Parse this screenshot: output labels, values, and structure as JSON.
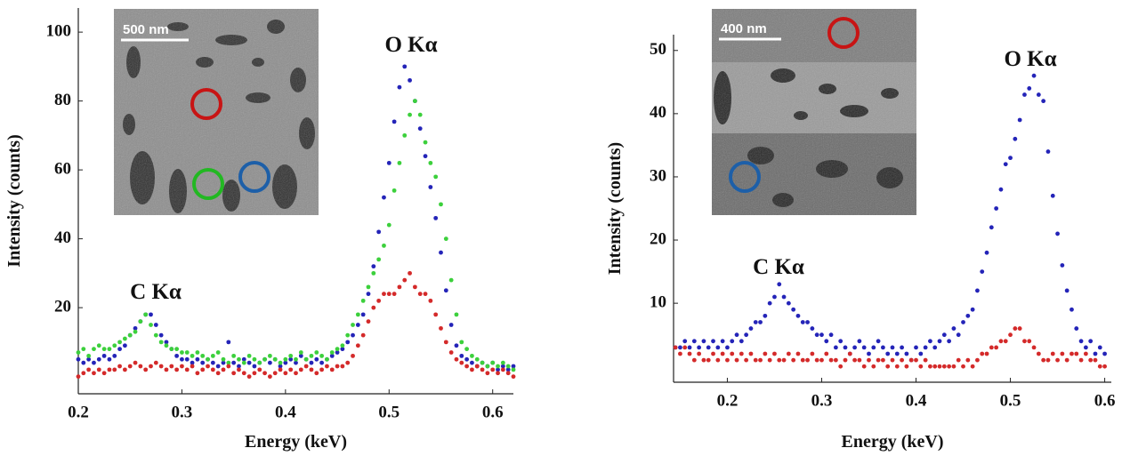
{
  "chart_data": [
    {
      "type": "scatter",
      "xlabel": "Energy (keV)",
      "ylabel": "Intensity (counts)",
      "annotations": [
        "C Kα",
        "O Kα"
      ],
      "inset_scale_bar": "500 nm",
      "xlim": [
        0.2,
        0.62
      ],
      "ylim": [
        -5,
        107
      ],
      "xticks": [
        0.2,
        0.3,
        0.4,
        0.5,
        0.6
      ],
      "yticks": [
        20,
        40,
        60,
        80,
        100
      ],
      "x": [
        0.2,
        0.205,
        0.21,
        0.215,
        0.22,
        0.225,
        0.23,
        0.235,
        0.24,
        0.245,
        0.25,
        0.255,
        0.26,
        0.265,
        0.27,
        0.275,
        0.28,
        0.285,
        0.29,
        0.295,
        0.3,
        0.305,
        0.31,
        0.315,
        0.32,
        0.325,
        0.33,
        0.335,
        0.34,
        0.345,
        0.35,
        0.355,
        0.36,
        0.365,
        0.37,
        0.375,
        0.38,
        0.385,
        0.39,
        0.395,
        0.4,
        0.405,
        0.41,
        0.415,
        0.42,
        0.425,
        0.43,
        0.435,
        0.44,
        0.445,
        0.45,
        0.455,
        0.46,
        0.465,
        0.47,
        0.475,
        0.48,
        0.485,
        0.49,
        0.495,
        0.5,
        0.505,
        0.51,
        0.515,
        0.52,
        0.525,
        0.53,
        0.535,
        0.54,
        0.545,
        0.55,
        0.555,
        0.56,
        0.565,
        0.57,
        0.575,
        0.58,
        0.585,
        0.59,
        0.595,
        0.6,
        0.605,
        0.61,
        0.615,
        0.62
      ],
      "series": [
        {
          "color": "#2424b8",
          "values": [
            5,
            4,
            5,
            4,
            5,
            6,
            5,
            6,
            8,
            9,
            12,
            14,
            16,
            18,
            18,
            15,
            12,
            10,
            8,
            6,
            5,
            5,
            4,
            5,
            4,
            5,
            4,
            3,
            4,
            10,
            4,
            3,
            5,
            4,
            3,
            4,
            5,
            4,
            5,
            3,
            4,
            5,
            4,
            6,
            5,
            4,
            5,
            4,
            5,
            6,
            7,
            8,
            10,
            12,
            15,
            18,
            24,
            32,
            42,
            52,
            62,
            74,
            84,
            90,
            86,
            80,
            72,
            64,
            55,
            46,
            36,
            25,
            15,
            9,
            6,
            5,
            4,
            3,
            4,
            3,
            4,
            2,
            3,
            2,
            3
          ]
        },
        {
          "color": "#3cd03c",
          "values": [
            7,
            8,
            6,
            8,
            9,
            8,
            8,
            9,
            10,
            11,
            12,
            13,
            16,
            18,
            15,
            12,
            10,
            9,
            8,
            8,
            7,
            7,
            6,
            7,
            6,
            5,
            6,
            7,
            5,
            4,
            6,
            5,
            4,
            6,
            5,
            4,
            5,
            6,
            5,
            4,
            5,
            6,
            5,
            7,
            5,
            6,
            7,
            6,
            5,
            7,
            8,
            9,
            12,
            15,
            18,
            22,
            26,
            30,
            34,
            38,
            44,
            54,
            62,
            70,
            76,
            80,
            76,
            68,
            62,
            58,
            50,
            40,
            28,
            18,
            10,
            8,
            6,
            5,
            4,
            3,
            4,
            3,
            4,
            3,
            2
          ]
        },
        {
          "color": "#d42a2a",
          "values": [
            0,
            1,
            2,
            1,
            2,
            1,
            2,
            2,
            3,
            2,
            3,
            4,
            3,
            2,
            3,
            4,
            3,
            2,
            3,
            2,
            3,
            2,
            3,
            1,
            2,
            3,
            2,
            1,
            2,
            3,
            1,
            2,
            1,
            0,
            1,
            2,
            1,
            0,
            1,
            2,
            1,
            2,
            1,
            2,
            3,
            2,
            1,
            2,
            3,
            2,
            3,
            3,
            4,
            6,
            9,
            12,
            16,
            20,
            22,
            24,
            24,
            24,
            26,
            28,
            30,
            26,
            24,
            24,
            22,
            18,
            14,
            10,
            7,
            5,
            4,
            3,
            2,
            3,
            2,
            1,
            2,
            1,
            2,
            1,
            0
          ]
        }
      ]
    },
    {
      "type": "scatter",
      "xlabel": "Energy (keV)",
      "ylabel": "Intensity (counts)",
      "annotations": [
        "C Kα",
        "O Kα"
      ],
      "inset_scale_bar": "400 nm",
      "xlim": [
        0.143,
        0.607
      ],
      "ylim": [
        -2.5,
        52.5
      ],
      "xticks": [
        0.2,
        0.3,
        0.4,
        0.5,
        0.6
      ],
      "yticks": [
        10,
        20,
        30,
        40,
        50
      ],
      "x": [
        0.145,
        0.15,
        0.155,
        0.16,
        0.165,
        0.17,
        0.175,
        0.18,
        0.185,
        0.19,
        0.195,
        0.2,
        0.205,
        0.21,
        0.215,
        0.22,
        0.225,
        0.23,
        0.235,
        0.24,
        0.245,
        0.25,
        0.255,
        0.26,
        0.265,
        0.27,
        0.275,
        0.28,
        0.285,
        0.29,
        0.295,
        0.3,
        0.305,
        0.31,
        0.315,
        0.32,
        0.325,
        0.33,
        0.335,
        0.34,
        0.345,
        0.35,
        0.355,
        0.36,
        0.365,
        0.37,
        0.375,
        0.38,
        0.385,
        0.39,
        0.395,
        0.4,
        0.405,
        0.41,
        0.415,
        0.42,
        0.425,
        0.43,
        0.435,
        0.44,
        0.445,
        0.45,
        0.455,
        0.46,
        0.465,
        0.47,
        0.475,
        0.48,
        0.485,
        0.49,
        0.495,
        0.5,
        0.505,
        0.51,
        0.515,
        0.52,
        0.525,
        0.53,
        0.535,
        0.54,
        0.545,
        0.55,
        0.555,
        0.56,
        0.565,
        0.57,
        0.575,
        0.58,
        0.585,
        0.59,
        0.595,
        0.6
      ],
      "series": [
        {
          "color": "#2424b8",
          "values": [
            3,
            3,
            4,
            3,
            4,
            3,
            4,
            3,
            4,
            3,
            4,
            3,
            4,
            5,
            4,
            5,
            6,
            7,
            7,
            8,
            10,
            11,
            13,
            11,
            10,
            9,
            8,
            7,
            7,
            6,
            5,
            5,
            4,
            5,
            3,
            4,
            3,
            2,
            3,
            4,
            3,
            2,
            3,
            4,
            3,
            2,
            3,
            2,
            3,
            2,
            1,
            3,
            2,
            3,
            4,
            3,
            4,
            5,
            4,
            6,
            5,
            7,
            8,
            9,
            12,
            15,
            18,
            22,
            25,
            28,
            32,
            33,
            36,
            39,
            43,
            44,
            46,
            43,
            42,
            34,
            27,
            21,
            16,
            12,
            9,
            6,
            4,
            3,
            4,
            2,
            3,
            2
          ]
        },
        {
          "color": "#d42a2a",
          "values": [
            3,
            2,
            3,
            2,
            1,
            2,
            1,
            1,
            2,
            1,
            2,
            1,
            2,
            1,
            2,
            1,
            2,
            1,
            1,
            2,
            1,
            2,
            1,
            1,
            2,
            1,
            2,
            1,
            1,
            2,
            1,
            1,
            2,
            1,
            1,
            0,
            1,
            2,
            1,
            1,
            0,
            1,
            0,
            1,
            1,
            0,
            1,
            0,
            1,
            0,
            1,
            1,
            0,
            1,
            0,
            0,
            0,
            0,
            0,
            0,
            1,
            0,
            1,
            0,
            1,
            2,
            2,
            3,
            3,
            4,
            4,
            5,
            6,
            6,
            4,
            4,
            3,
            2,
            1,
            1,
            2,
            1,
            2,
            1,
            2,
            2,
            1,
            2,
            1,
            1,
            0,
            0
          ]
        }
      ]
    }
  ]
}
